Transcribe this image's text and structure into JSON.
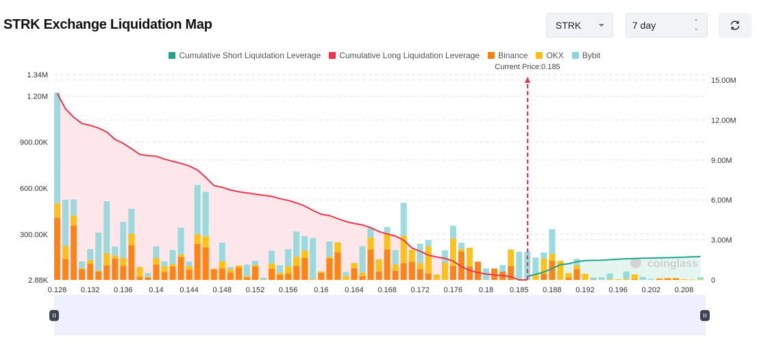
{
  "header": {
    "title": "STRK Exchange Liquidation Map",
    "symbol_select": "STRK",
    "period_select": "7 day",
    "refresh_icon": "refresh-icon"
  },
  "colors": {
    "short_line": "#1fa58a",
    "long_line": "#f0344a",
    "binance": "#ff7d0a",
    "okx": "#ffbf0a",
    "bybit": "#8ad6da",
    "long_area": "#fde7ea",
    "short_area": "#e5f6f1",
    "slider": "#eef1fd"
  },
  "watermark": "coinglass",
  "chart_data": {
    "type": "bar",
    "title": "",
    "current_price_label": "Current Price:0.185",
    "current_price": 0.185,
    "legend": [
      "Cumulative Short Liquidation Leverage",
      "Cumulative Long Liquidation Leverage",
      "Binance",
      "OKX",
      "Bybit"
    ],
    "legend_position": "top",
    "grid": true,
    "left_axis": {
      "ticks": [
        "2.88K",
        "300.00K",
        "600.00K",
        "900.00K",
        "1.20M",
        "1.34M"
      ],
      "tick_values": [
        2880,
        300000,
        600000,
        900000,
        1200000,
        1340000
      ],
      "range": [
        2880,
        1340000
      ]
    },
    "right_axis": {
      "ticks": [
        "0",
        "3.00M",
        "6.00M",
        "9.00M",
        "12.00M",
        "15.00M"
      ],
      "tick_values": [
        0,
        3000000,
        6000000,
        9000000,
        12000000,
        15000000
      ],
      "range": [
        0,
        15000000
      ]
    },
    "x_tick_labels": [
      "0.128",
      "0.132",
      "0.136",
      "0.14",
      "0.144",
      "0.148",
      "0.152",
      "0.156",
      "0.16",
      "0.164",
      "0.168",
      "0.172",
      "0.176",
      "0.18",
      "0.185",
      "0.188",
      "0.192",
      "0.196",
      "0.202",
      "0.208"
    ],
    "categories": [
      "0.128",
      "0.129",
      "0.13",
      "0.131",
      "0.132",
      "0.133",
      "0.134",
      "0.135",
      "0.136",
      "0.137",
      "0.138",
      "0.139",
      "0.14",
      "0.141",
      "0.142",
      "0.143",
      "0.144",
      "0.145",
      "0.146",
      "0.147",
      "0.148",
      "0.149",
      "0.15",
      "0.151",
      "0.152",
      "0.153",
      "0.154",
      "0.155",
      "0.156",
      "0.157",
      "0.158",
      "0.159",
      "0.16",
      "0.161",
      "0.162",
      "0.163",
      "0.164",
      "0.165",
      "0.166",
      "0.167",
      "0.168",
      "0.169",
      "0.17",
      "0.171",
      "0.172",
      "0.173",
      "0.174",
      "0.175",
      "0.176",
      "0.177",
      "0.178",
      "0.179",
      "0.18",
      "0.181",
      "0.182",
      "0.183",
      "0.185",
      "0.186",
      "0.187",
      "0.1875",
      "0.188",
      "0.189",
      "0.19",
      "0.191",
      "0.192",
      "0.193",
      "0.194",
      "0.195",
      "0.196",
      "0.198",
      "0.2",
      "0.201",
      "0.202",
      "0.204",
      "0.206",
      "0.207",
      "0.208",
      "0.209",
      "0.21"
    ],
    "series": [
      {
        "name": "Binance",
        "axis": "left",
        "values": [
          403000,
          137000,
          354000,
          70000,
          106000,
          55000,
          95000,
          140000,
          92000,
          225000,
          21000,
          16000,
          100000,
          52000,
          88000,
          150000,
          67000,
          234000,
          212000,
          69000,
          75000,
          48000,
          82000,
          16000,
          88000,
          0,
          73000,
          33000,
          42000,
          92000,
          144000,
          0,
          46000,
          140000,
          180000,
          0,
          76000,
          25000,
          198000,
          55000,
          198000,
          60000,
          109000,
          118000,
          69000,
          42000,
          0,
          0,
          91000,
          185000,
          88000,
          119000,
          0,
          73000,
          54000,
          91000,
          0,
          0,
          0,
          40000,
          125000,
          0,
          16000,
          69000,
          0,
          3000,
          0,
          0,
          0,
          0,
          5000,
          0,
          0,
          7000,
          9000,
          10000,
          0,
          0,
          0
        ]
      },
      {
        "name": "OKX",
        "axis": "left",
        "values": [
          97000,
          85000,
          66000,
          6000,
          24000,
          6000,
          79000,
          18000,
          51000,
          75000,
          63000,
          3000,
          42000,
          36000,
          15000,
          16000,
          23000,
          62000,
          72000,
          3000,
          46000,
          22000,
          12000,
          9000,
          9000,
          3000,
          33000,
          13000,
          46000,
          58000,
          46000,
          7000,
          9000,
          10000,
          65000,
          25000,
          34000,
          21000,
          78000,
          79000,
          106000,
          40000,
          179000,
          78000,
          41000,
          177000,
          36000,
          112000,
          179000,
          16000,
          122000,
          0,
          0,
          3000,
          0,
          107000,
          0,
          0,
          40000,
          99000,
          45000,
          125000,
          29000,
          26000,
          40000,
          0,
          0,
          6000,
          5000,
          7000,
          31000,
          0,
          0,
          3000,
          4000,
          3000,
          5000,
          2000,
          3000
        ]
      },
      {
        "name": "Bybit",
        "axis": "left",
        "values": [
          720000,
          300000,
          104000,
          45000,
          71000,
          248000,
          338000,
          59000,
          234000,
          163000,
          0,
          26000,
          77000,
          33000,
          92000,
          174000,
          29000,
          322000,
          289000,
          0,
          121000,
          15000,
          0,
          75000,
          28000,
          12000,
          85000,
          49000,
          113000,
          165000,
          96000,
          266000,
          0,
          100000,
          0,
          26000,
          0,
          174000,
          64000,
          0,
          41000,
          94000,
          215000,
          0,
          125000,
          41000,
          0,
          81000,
          83000,
          41000,
          0,
          0,
          75000,
          0,
          43000,
          0,
          184000,
          184000,
          106000,
          40000,
          160000,
          0,
          0,
          42000,
          0,
          13000,
          18000,
          36000,
          0,
          48000,
          0,
          20000,
          7000,
          0,
          0,
          0,
          0,
          0,
          15000
        ]
      },
      {
        "name": "Cumulative Long Liquidation Leverage",
        "axis": "right",
        "type": "line",
        "values": [
          14000000,
          12850000,
          12200000,
          11750000,
          11600000,
          11400000,
          11100000,
          10550000,
          10250000,
          9850000,
          9420000,
          9330000,
          9280000,
          9060000,
          8900000,
          8750000,
          8550000,
          8250000,
          7700000,
          7080000,
          6950000,
          6750000,
          6620000,
          6530000,
          6440000,
          6350000,
          6270000,
          6100000,
          5970000,
          5780000,
          5550000,
          5220000,
          4930000,
          4830000,
          4600000,
          4380000,
          4240000,
          4130000,
          3920000,
          3630000,
          3450000,
          3290000,
          2980000,
          2400000,
          2150000,
          1860000,
          1720000,
          1620000,
          1420000,
          1000000,
          720000,
          550000,
          450000,
          370000,
          330000,
          250000,
          0,
          0,
          null,
          null,
          null,
          null,
          null,
          null,
          null,
          null,
          null,
          null,
          null,
          null,
          null,
          null,
          null,
          null,
          null,
          null,
          null,
          null,
          null
        ]
      },
      {
        "name": "Cumulative Short Liquidation Leverage",
        "axis": "right",
        "type": "line",
        "values": [
          null,
          null,
          null,
          null,
          null,
          null,
          null,
          null,
          null,
          null,
          null,
          null,
          null,
          null,
          null,
          null,
          null,
          null,
          null,
          null,
          null,
          null,
          null,
          null,
          null,
          null,
          null,
          null,
          null,
          null,
          null,
          null,
          null,
          null,
          null,
          null,
          null,
          null,
          null,
          null,
          null,
          null,
          null,
          null,
          null,
          null,
          null,
          null,
          null,
          null,
          null,
          null,
          null,
          null,
          null,
          null,
          null,
          260000,
          420000,
          600000,
          850000,
          1150000,
          1210000,
          1370000,
          1450000,
          1470000,
          1480000,
          1520000,
          1550000,
          1590000,
          1610000,
          1630000,
          1640000,
          1660000,
          1670000,
          1690000,
          1710000,
          1730000,
          1750000
        ]
      }
    ]
  }
}
